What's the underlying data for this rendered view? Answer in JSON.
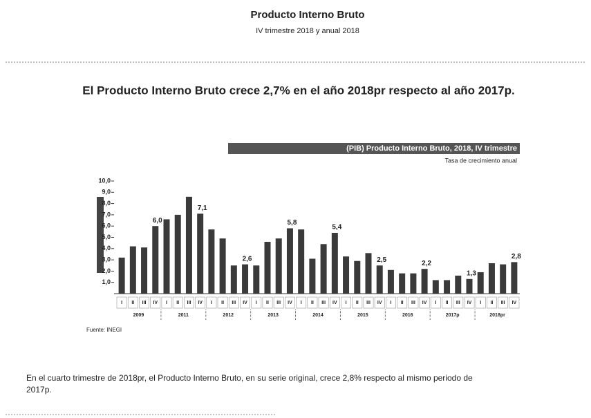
{
  "header": {
    "title": "Producto Interno Bruto",
    "subtitle": "IV trimestre 2018 y anual 2018"
  },
  "headline": "El Producto Interno Bruto crece 2,7% en el año 2018pr respecto al año 2017p.",
  "chart_data": {
    "type": "bar",
    "title": "(PIB) Producto Interno Bruto, 2018, IV trimestre",
    "subtitle": "Tasa de crecimiento anual",
    "source": "Fuente: INEGI",
    "categories": [
      "I",
      "II",
      "III",
      "IV",
      "I",
      "II",
      "III",
      "IV",
      "I",
      "II",
      "III",
      "IV",
      "I",
      "II",
      "III",
      "IV",
      "I",
      "II",
      "III",
      "IV",
      "I",
      "II",
      "III",
      "IV",
      "I",
      "II",
      "III",
      "IV",
      "I",
      "II",
      "III",
      "IV",
      "I",
      "II",
      "III",
      "IV"
    ],
    "groups": [
      "2009",
      "2011",
      "2012",
      "2013",
      "2014",
      "2015",
      "2016",
      "2017p",
      "2018pr"
    ],
    "values": [
      3.2,
      4.2,
      4.1,
      6.0,
      6.6,
      7.0,
      8.6,
      7.1,
      5.7,
      4.9,
      2.5,
      2.6,
      2.5,
      4.6,
      4.9,
      5.8,
      5.7,
      3.1,
      4.4,
      5.4,
      3.3,
      2.9,
      3.6,
      2.5,
      2.1,
      1.8,
      1.8,
      2.2,
      1.2,
      1.2,
      1.6,
      1.3,
      1.9,
      2.7,
      2.6,
      2.8
    ],
    "value_labels": [
      null,
      null,
      null,
      "6,0",
      null,
      null,
      null,
      "7,1",
      null,
      null,
      null,
      "2,6",
      null,
      null,
      null,
      "5,8",
      null,
      null,
      null,
      "5,4",
      null,
      null,
      null,
      "2,5",
      null,
      null,
      null,
      "2,2",
      null,
      null,
      null,
      "1,3",
      null,
      null,
      null,
      "2,8"
    ],
    "color": "#3a3a3a",
    "ylim": [
      0,
      10
    ],
    "yticks": [
      {
        "value": 1,
        "label": "1,0"
      },
      {
        "value": 2,
        "label": "2,0"
      },
      {
        "value": 3,
        "label": "3,0"
      },
      {
        "value": 4,
        "label": "4,0"
      },
      {
        "value": 5,
        "label": "5,0"
      },
      {
        "value": 6,
        "label": "6,0"
      },
      {
        "value": 7,
        "label": "7,0"
      },
      {
        "value": 8,
        "label": "8,0"
      },
      {
        "value": 9,
        "label": "9,0"
      },
      {
        "value": 10,
        "label": "10,0"
      }
    ]
  },
  "paragraph": "En el cuarto trimestre de 2018pr, el Producto Interno Bruto, en su serie original, crece 2,8% respecto al mismo periodo de 2017p."
}
